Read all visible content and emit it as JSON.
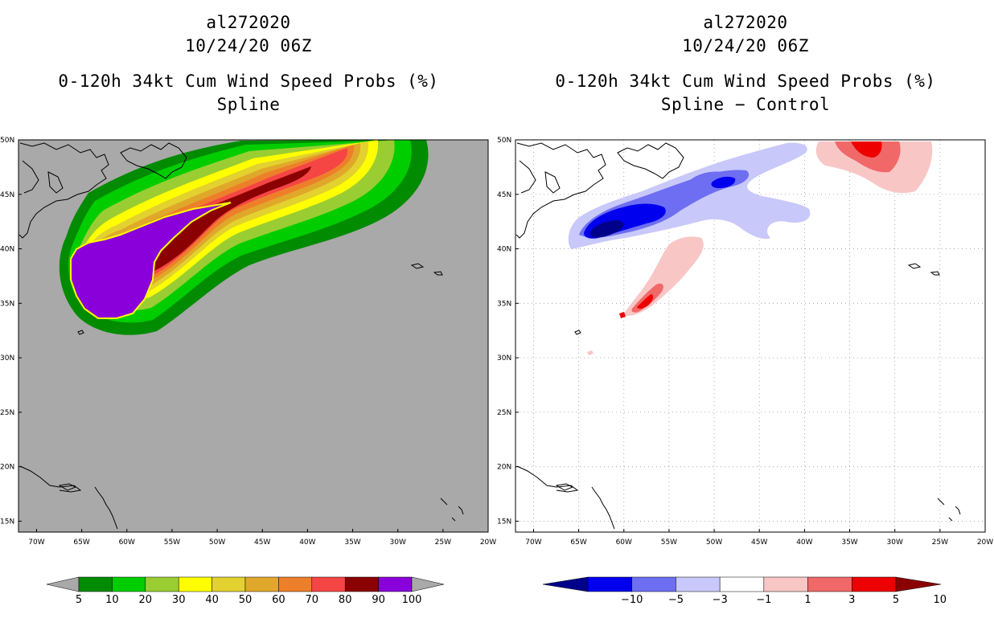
{
  "left": {
    "storm_id": "al272020",
    "datetime": "10/24/20 06Z",
    "product": "0-120h 34kt Cum Wind Speed Probs (%)",
    "method": "Spline",
    "colorbar": {
      "labels": [
        "5",
        "10",
        "20",
        "30",
        "40",
        "50",
        "60",
        "70",
        "80",
        "90",
        "100"
      ],
      "colors": [
        "#008b00",
        "#00cd00",
        "#9acd32",
        "#ffff00",
        "#e3d12f",
        "#e0a82a",
        "#ee7f2a",
        "#f54545",
        "#8b0000",
        "#8a00da"
      ]
    }
  },
  "right": {
    "storm_id": "al272020",
    "datetime": "10/24/20 06Z",
    "product": "0-120h 34kt Cum Wind Speed Probs (%)",
    "method": "Spline − Control",
    "colorbar": {
      "labels": [
        "−10",
        "−5",
        "−3",
        "−1",
        "1",
        "3",
        "5",
        "10"
      ],
      "colors": [
        "#00008b",
        "#0000ee",
        "#6e6ef2",
        "#c8c8fa",
        "#ffffff",
        "#f9c6c6",
        "#f06868",
        "#ee0000",
        "#8b0000"
      ]
    }
  },
  "axes": {
    "lat_labels": [
      "50N",
      "45N",
      "40N",
      "35N",
      "30N",
      "25N",
      "20N",
      "15N"
    ],
    "lon_labels": [
      "70W",
      "65W",
      "60W",
      "55W",
      "50W",
      "45W",
      "40W",
      "35W",
      "30W",
      "25W",
      "20W"
    ]
  }
}
